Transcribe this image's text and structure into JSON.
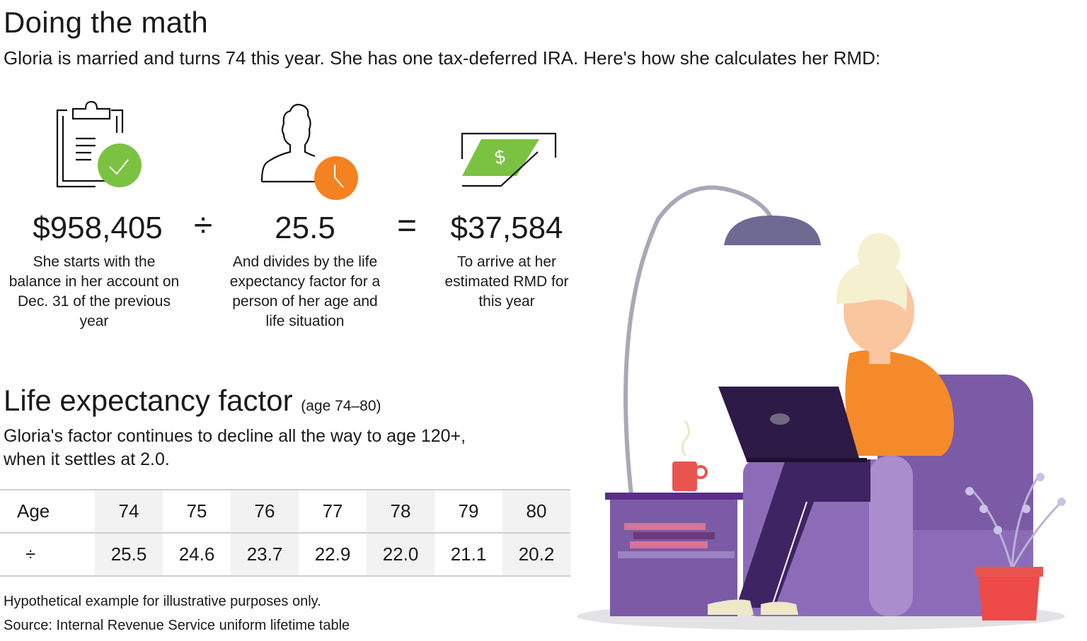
{
  "title": "Doing the math",
  "subtitle": "Gloria is married and turns 74 this year. She has one tax-deferred IRA. Here's how she calculates her RMD:",
  "steps": [
    {
      "icon": "clipboard-check-icon",
      "value": "$958,405",
      "description": "She starts with the balance in her account on Dec. 31 of the previous year",
      "accent": "#7cc242"
    },
    {
      "icon": "person-clock-icon",
      "value": "25.5",
      "description": "And divides by the life expectancy factor for a person of her age and life situation",
      "accent": "#f58220"
    },
    {
      "icon": "cash-dispense-icon",
      "value": "$37,584",
      "description": "To arrive at her estimated RMD for this year",
      "accent": "#7cc242"
    }
  ],
  "operators": {
    "divide": "÷",
    "equals": "="
  },
  "section": {
    "title": "Life expectancy factor",
    "range": "(age 74–80)",
    "text": "Gloria's factor continues to decline all the way to age 120+, when it settles at 2.0."
  },
  "table": {
    "row_labels": [
      "Age",
      "÷"
    ],
    "ages": [
      "74",
      "75",
      "76",
      "77",
      "78",
      "79",
      "80"
    ],
    "factors": [
      "25.5",
      "24.6",
      "23.7",
      "22.9",
      "22.0",
      "21.1",
      "20.2"
    ]
  },
  "notes": [
    "Hypothetical example for illustrative purposes only.",
    "Source: Internal Revenue Service uniform lifetime table"
  ]
}
